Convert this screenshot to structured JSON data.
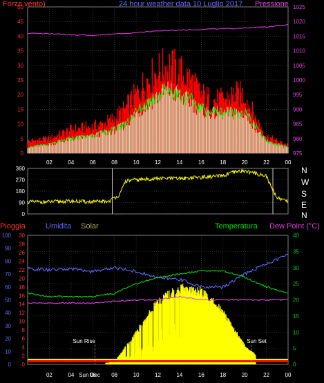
{
  "header": {
    "left": "Forza vento)",
    "center": "24 hour weather data  10 Luglio 2017",
    "right": "Pressione"
  },
  "bottom_header": {
    "pioggia": "Pioggia",
    "umidita": "Umidita",
    "solar": "Solar",
    "temperatura": "Temperatura",
    "dew_point": "Dew Point (°C)"
  },
  "compass": [
    "N",
    "W",
    "S",
    "E",
    "N"
  ],
  "colors": {
    "wind_gust": "#ff0000",
    "wind_avg": "#00ff00",
    "wind_min": "#ccffcc",
    "pressure": "#cc33cc",
    "direction": "#ffff00",
    "solar": "#ffff00",
    "humidity": "#6666ff",
    "temperature": "#00dd00",
    "dew_point": "#dd44dd",
    "rain": "#ff0000",
    "grid": "#555555",
    "axis_red": "#ff3333",
    "axis_magenta": "#dd44dd",
    "axis_blue": "#6666ff",
    "axis_green": "#00cc00",
    "axis_white": "#ffffff"
  },
  "x_ticks": [
    "02",
    "04",
    "06",
    "08",
    "10",
    "12",
    "14",
    "16",
    "18",
    "20",
    "22",
    "00"
  ],
  "sun_labels": {
    "rise": "Sun Rise",
    "set": "Sun Set",
    "marks": "Sun Dec"
  },
  "chart_data": [
    {
      "type": "area",
      "title": "24 hour weather data  10 Luglio 2017",
      "left_axis": {
        "label": "Forza vento)",
        "min": 0,
        "max": 50,
        "ticks": [
          0,
          5,
          10,
          15,
          20,
          25,
          30,
          35,
          40,
          45,
          50
        ]
      },
      "right_axis": {
        "label": "Pressione",
        "min": 975,
        "max": 1025,
        "ticks": [
          975,
          980,
          985,
          990,
          995,
          1000,
          1005,
          1010,
          1015,
          1020,
          1025
        ]
      },
      "x_hours": [
        0,
        2,
        4,
        6,
        7,
        8,
        9,
        10,
        11,
        12,
        13,
        14,
        15,
        16,
        17,
        18,
        19,
        20,
        21,
        22,
        23,
        24
      ],
      "series": [
        {
          "name": "gust",
          "values": [
            4,
            5,
            8,
            9,
            10,
            12,
            15,
            20,
            25,
            28,
            30,
            28,
            25,
            20,
            18,
            18,
            20,
            20,
            12,
            6,
            4,
            3
          ]
        },
        {
          "name": "avg",
          "values": [
            2,
            3,
            5,
            6,
            7,
            8,
            10,
            14,
            17,
            20,
            22,
            20,
            18,
            15,
            14,
            14,
            14,
            14,
            9,
            4,
            3,
            2
          ]
        },
        {
          "name": "min",
          "values": [
            1,
            1,
            3,
            4,
            4,
            5,
            7,
            9,
            11,
            13,
            14,
            14,
            12,
            11,
            10,
            10,
            10,
            10,
            6,
            2,
            1,
            1
          ]
        },
        {
          "name": "pressure",
          "values": [
            1016,
            1015.8,
            1015.5,
            1015.3,
            1015.5,
            1015.8,
            1016,
            1016.2,
            1016.5,
            1016.8,
            1017,
            1017,
            1017.2,
            1017.3,
            1017.5,
            1017.5,
            1017.6,
            1017.8,
            1018,
            1018.2,
            1018.5,
            1019
          ]
        }
      ]
    },
    {
      "type": "line",
      "left_axis": {
        "min": 0,
        "max": 360,
        "ticks": [
          0,
          90,
          180,
          270,
          360
        ]
      },
      "x_hours": [
        0,
        2,
        4,
        6,
        7.5,
        8,
        8.5,
        9,
        10,
        12,
        14,
        16,
        18,
        19,
        20,
        21,
        22,
        22.5,
        23,
        24
      ],
      "series": [
        {
          "name": "direction",
          "values": [
            95,
            95,
            100,
            95,
            100,
            130,
            150,
            260,
            270,
            280,
            280,
            290,
            300,
            330,
            340,
            320,
            300,
            200,
            130,
            100
          ]
        }
      ]
    },
    {
      "type": "line",
      "axes": {
        "pioggia": {
          "label": "Pioggia",
          "min": 0,
          "max": 30,
          "ticks": [
            0,
            2,
            4,
            6,
            8,
            10,
            12,
            14,
            16,
            18,
            20,
            22,
            24,
            26,
            28,
            30
          ]
        },
        "umidita": {
          "label": "Umidita",
          "min": 0,
          "max": 100,
          "ticks": [
            0,
            10,
            20,
            30,
            40,
            50,
            60,
            70,
            80,
            90,
            100
          ]
        },
        "temperatura": {
          "label": "Dew Point (°C)",
          "min": 0,
          "max": 40,
          "ticks": [
            0,
            5,
            10,
            15,
            20,
            25,
            30,
            35,
            40
          ]
        }
      },
      "x_hours": [
        0,
        2,
        4,
        6,
        8,
        10,
        12,
        14,
        16,
        18,
        20,
        22,
        24
      ],
      "series": [
        {
          "name": "Umidita",
          "axis": "umidita",
          "values": [
            74,
            73,
            74,
            72,
            75,
            72,
            67,
            66,
            60,
            60,
            70,
            78,
            85
          ]
        },
        {
          "name": "Temperatura",
          "axis": "temperatura",
          "values": [
            22,
            21,
            21,
            21,
            22,
            25,
            27,
            28,
            29,
            29,
            27,
            24,
            22
          ]
        },
        {
          "name": "Dew Point",
          "axis": "temperatura",
          "values": [
            19,
            19,
            19,
            19,
            19.5,
            20,
            20,
            21,
            20,
            20,
            20,
            20,
            20
          ]
        },
        {
          "name": "Solar",
          "axis": "umidita",
          "values": [
            0,
            0,
            0,
            0,
            2,
            25,
            50,
            60,
            58,
            42,
            15,
            0,
            0
          ]
        },
        {
          "name": "Pioggia",
          "axis": "pioggia",
          "values": [
            0.5,
            0.5,
            0.5,
            0.5,
            0.5,
            0.5,
            0.5,
            0.5,
            0.5,
            0.5,
            0.5,
            0.5,
            0.5
          ]
        }
      ]
    }
  ]
}
